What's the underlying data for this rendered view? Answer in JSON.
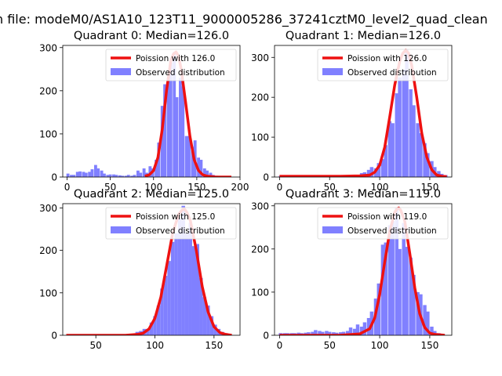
{
  "suptitle": "n file: modeM0/AS1A10_123T11_9000005286_37241cztM0_level2_quad_clean",
  "colors": {
    "hist": "#8080ff",
    "poisson": "#ee1111"
  },
  "chart_data": [
    {
      "type": "bar",
      "title": "Quadrant 0: Median=126.0",
      "xlim": [
        -5,
        200
      ],
      "ylim": [
        0,
        305
      ],
      "xticks": [
        0,
        50,
        100,
        150,
        200
      ],
      "yticks": [
        0,
        100,
        200,
        300
      ],
      "legend": {
        "placement": "top-right",
        "entries": [
          "Poission with 126.0",
          "Observed distribution"
        ]
      },
      "bin_width": 3.5,
      "bins": [
        [
          1,
          8
        ],
        [
          5,
          5
        ],
        [
          8,
          5
        ],
        [
          12,
          12
        ],
        [
          15,
          13
        ],
        [
          19,
          12
        ],
        [
          22,
          10
        ],
        [
          26,
          12
        ],
        [
          29,
          18
        ],
        [
          33,
          28
        ],
        [
          36,
          20
        ],
        [
          40,
          15
        ],
        [
          43,
          8
        ],
        [
          47,
          5
        ],
        [
          50,
          6
        ],
        [
          54,
          6
        ],
        [
          57,
          5
        ],
        [
          61,
          4
        ],
        [
          64,
          3
        ],
        [
          68,
          3
        ],
        [
          71,
          5
        ],
        [
          75,
          3
        ],
        [
          78,
          5
        ],
        [
          82,
          15
        ],
        [
          85,
          10
        ],
        [
          89,
          20
        ],
        [
          92,
          10
        ],
        [
          96,
          25
        ],
        [
          99,
          20
        ],
        [
          103,
          40
        ],
        [
          106,
          80
        ],
        [
          110,
          165
        ],
        [
          113,
          215
        ],
        [
          117,
          230
        ],
        [
          120,
          265
        ],
        [
          124,
          290
        ],
        [
          127,
          185
        ],
        [
          131,
          230
        ],
        [
          134,
          210
        ],
        [
          138,
          95
        ],
        [
          141,
          95
        ],
        [
          145,
          70
        ],
        [
          148,
          85
        ],
        [
          152,
          45
        ],
        [
          155,
          40
        ],
        [
          159,
          20
        ],
        [
          162,
          15
        ],
        [
          166,
          10
        ],
        [
          169,
          5
        ],
        [
          173,
          3
        ]
      ],
      "poisson_label": "Poission with 126.0",
      "poisson": {
        "x": [
          90,
          95,
          100,
          105,
          110,
          115,
          120,
          123,
          126,
          129,
          132,
          137,
          142,
          147,
          152,
          157,
          162,
          167,
          172,
          177,
          182,
          187,
          190
        ],
        "y": [
          2,
          5,
          15,
          45,
          110,
          200,
          270,
          285,
          290,
          280,
          250,
          175,
          95,
          40,
          15,
          5,
          2,
          1,
          0,
          0,
          0,
          0,
          0
        ]
      }
    },
    {
      "type": "bar",
      "title": "Quadrant 1: Median=126.0",
      "xlim": [
        -5,
        172
      ],
      "ylim": [
        0,
        330
      ],
      "xticks": [
        0,
        50,
        100,
        150
      ],
      "yticks": [
        0,
        100,
        200,
        300
      ],
      "legend": {
        "placement": "top-right",
        "entries": [
          "Poission with 126.0",
          "Observed distribution"
        ]
      },
      "bin_width": 3.5,
      "bins": [
        [
          1,
          3
        ],
        [
          5,
          2
        ],
        [
          8,
          2
        ],
        [
          12,
          2
        ],
        [
          15,
          2
        ],
        [
          19,
          2
        ],
        [
          22,
          2
        ],
        [
          26,
          2
        ],
        [
          29,
          2
        ],
        [
          33,
          2
        ],
        [
          36,
          2
        ],
        [
          40,
          2
        ],
        [
          43,
          2
        ],
        [
          47,
          3
        ],
        [
          50,
          2
        ],
        [
          54,
          2
        ],
        [
          57,
          3
        ],
        [
          61,
          3
        ],
        [
          64,
          3
        ],
        [
          68,
          3
        ],
        [
          71,
          3
        ],
        [
          75,
          5
        ],
        [
          78,
          4
        ],
        [
          82,
          10
        ],
        [
          85,
          12
        ],
        [
          89,
          18
        ],
        [
          92,
          25
        ],
        [
          96,
          22
        ],
        [
          99,
          35
        ],
        [
          103,
          45
        ],
        [
          106,
          80
        ],
        [
          110,
          140
        ],
        [
          113,
          135
        ],
        [
          117,
          210
        ],
        [
          120,
          250
        ],
        [
          124,
          270
        ],
        [
          127,
          320
        ],
        [
          131,
          220
        ],
        [
          134,
          180
        ],
        [
          138,
          135
        ],
        [
          141,
          110
        ],
        [
          145,
          85
        ],
        [
          148,
          60
        ],
        [
          152,
          40
        ],
        [
          155,
          25
        ],
        [
          159,
          15
        ],
        [
          162,
          8
        ],
        [
          166,
          5
        ]
      ],
      "poisson_label": "Poission with 126.0",
      "poisson": {
        "x": [
          0,
          20,
          40,
          60,
          80,
          90,
          95,
          100,
          105,
          110,
          115,
          120,
          123,
          126,
          129,
          132,
          137,
          142,
          147,
          152,
          157,
          162,
          167
        ],
        "y": [
          2,
          2,
          2,
          2,
          3,
          5,
          12,
          30,
          75,
          150,
          230,
          290,
          310,
          318,
          310,
          280,
          200,
          110,
          50,
          18,
          5,
          2,
          1
        ]
      }
    },
    {
      "type": "bar",
      "title": "Quadrant 2: Median=125.0",
      "xlim": [
        22,
        172
      ],
      "ylim": [
        0,
        310
      ],
      "xticks": [
        50,
        100,
        150
      ],
      "yticks": [
        0,
        100,
        200,
        300
      ],
      "legend": {
        "placement": "top-right",
        "entries": [
          "Poission with 125.0",
          "Observed distribution"
        ]
      },
      "bin_width": 3,
      "bins": [
        [
          28,
          2
        ],
        [
          31,
          2
        ],
        [
          34,
          2
        ],
        [
          37,
          2
        ],
        [
          40,
          2
        ],
        [
          43,
          2
        ],
        [
          46,
          2
        ],
        [
          49,
          2
        ],
        [
          52,
          2
        ],
        [
          55,
          2
        ],
        [
          58,
          2
        ],
        [
          61,
          2
        ],
        [
          64,
          2
        ],
        [
          67,
          2
        ],
        [
          70,
          2
        ],
        [
          73,
          2
        ],
        [
          76,
          2
        ],
        [
          79,
          2
        ],
        [
          82,
          3
        ],
        [
          85,
          8
        ],
        [
          88,
          10
        ],
        [
          91,
          15
        ],
        [
          94,
          15
        ],
        [
          97,
          30
        ],
        [
          100,
          45
        ],
        [
          103,
          70
        ],
        [
          106,
          110
        ],
        [
          109,
          140
        ],
        [
          112,
          175
        ],
        [
          115,
          220
        ],
        [
          118,
          240
        ],
        [
          121,
          275
        ],
        [
          124,
          305
        ],
        [
          127,
          240
        ],
        [
          130,
          265
        ],
        [
          133,
          210
        ],
        [
          136,
          215
        ],
        [
          139,
          135
        ],
        [
          142,
          90
        ],
        [
          145,
          70
        ],
        [
          148,
          45
        ],
        [
          151,
          25
        ],
        [
          154,
          15
        ],
        [
          157,
          8
        ],
        [
          160,
          5
        ],
        [
          163,
          3
        ]
      ],
      "poisson_label": "Poission with 125.0",
      "poisson": {
        "x": [
          25,
          50,
          75,
          85,
          90,
          95,
          100,
          105,
          110,
          115,
          120,
          123,
          125,
          127,
          130,
          135,
          140,
          145,
          150,
          155,
          160,
          165
        ],
        "y": [
          0,
          0,
          0,
          2,
          5,
          15,
          40,
          90,
          165,
          240,
          285,
          295,
          297,
          290,
          270,
          200,
          115,
          55,
          20,
          6,
          2,
          0
        ]
      }
    },
    {
      "type": "bar",
      "title": "Quadrant 3: Median=119.0",
      "xlim": [
        -5,
        172
      ],
      "ylim": [
        0,
        305
      ],
      "xticks": [
        0,
        50,
        100,
        150
      ],
      "yticks": [
        0,
        100,
        200,
        300
      ],
      "legend": {
        "placement": "top-right",
        "entries": [
          "Poission with 119.0",
          "Observed distribution"
        ]
      },
      "bin_width": 3.5,
      "bins": [
        [
          1,
          5
        ],
        [
          5,
          5
        ],
        [
          8,
          5
        ],
        [
          12,
          5
        ],
        [
          15,
          5
        ],
        [
          19,
          6
        ],
        [
          22,
          5
        ],
        [
          26,
          6
        ],
        [
          29,
          7
        ],
        [
          33,
          8
        ],
        [
          36,
          12
        ],
        [
          40,
          10
        ],
        [
          43,
          8
        ],
        [
          47,
          10
        ],
        [
          50,
          8
        ],
        [
          54,
          7
        ],
        [
          57,
          6
        ],
        [
          61,
          7
        ],
        [
          64,
          8
        ],
        [
          68,
          10
        ],
        [
          71,
          18
        ],
        [
          75,
          15
        ],
        [
          78,
          25
        ],
        [
          82,
          20
        ],
        [
          85,
          30
        ],
        [
          89,
          40
        ],
        [
          92,
          55
        ],
        [
          96,
          85
        ],
        [
          99,
          120
        ],
        [
          103,
          210
        ],
        [
          106,
          215
        ],
        [
          110,
          255
        ],
        [
          113,
          265
        ],
        [
          117,
          295
        ],
        [
          120,
          200
        ],
        [
          124,
          260
        ],
        [
          127,
          205
        ],
        [
          131,
          180
        ],
        [
          134,
          140
        ],
        [
          138,
          100
        ],
        [
          141,
          95
        ],
        [
          145,
          70
        ],
        [
          148,
          55
        ],
        [
          152,
          20
        ],
        [
          155,
          10
        ],
        [
          159,
          5
        ]
      ],
      "poisson_label": "Poission with 119.0",
      "poisson": {
        "x": [
          0,
          20,
          40,
          60,
          80,
          90,
          95,
          100,
          105,
          110,
          115,
          117,
          119,
          121,
          125,
          130,
          135,
          140,
          145,
          150,
          155,
          160,
          165
        ],
        "y": [
          0,
          0,
          0,
          0,
          3,
          15,
          40,
          95,
          170,
          240,
          285,
          292,
          295,
          290,
          265,
          190,
          110,
          50,
          18,
          5,
          2,
          1,
          0
        ]
      }
    }
  ]
}
